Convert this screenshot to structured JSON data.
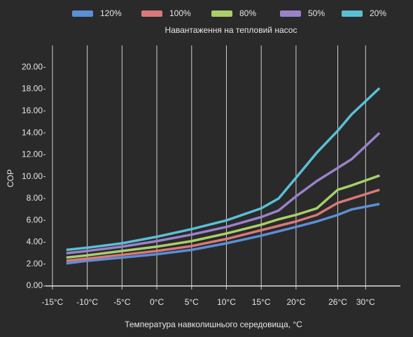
{
  "chart_data": {
    "type": "line",
    "subtitle": "Навантаження на тепловий насос",
    "xlabel": "Температура навколишнього середовища, °C",
    "ylabel": "COP",
    "x": [
      -13,
      -10,
      -5,
      0,
      5,
      10,
      15,
      17.5,
      20,
      23,
      26,
      28,
      32
    ],
    "series": [
      {
        "name": "120%",
        "color": "#5b8fd6",
        "values": [
          2.06,
          2.3,
          2.6,
          2.9,
          3.3,
          3.9,
          4.6,
          5.0,
          5.4,
          5.9,
          6.5,
          7.0,
          7.5
        ]
      },
      {
        "name": "100%",
        "color": "#d9787a",
        "values": [
          2.3,
          2.5,
          2.85,
          3.2,
          3.65,
          4.3,
          5.1,
          5.5,
          5.9,
          6.5,
          7.6,
          8.0,
          8.8
        ]
      },
      {
        "name": "80%",
        "color": "#a9cf6a",
        "values": [
          2.6,
          2.8,
          3.2,
          3.6,
          4.1,
          4.8,
          5.6,
          6.1,
          6.5,
          7.1,
          8.8,
          9.2,
          10.1
        ]
      },
      {
        "name": "50%",
        "color": "#9a82c9",
        "values": [
          3.0,
          3.2,
          3.6,
          4.1,
          4.7,
          5.4,
          6.3,
          6.9,
          8.2,
          9.6,
          10.8,
          11.6,
          14.0
        ]
      },
      {
        "name": "20%",
        "color": "#5bbfd6",
        "values": [
          3.3,
          3.5,
          3.9,
          4.5,
          5.2,
          6.0,
          7.1,
          8.0,
          9.9,
          12.2,
          14.2,
          15.7,
          18.1
        ]
      }
    ],
    "xlim": [
      -16,
      35
    ],
    "xticks": [
      {
        "value": -15,
        "label": "-15°C"
      },
      {
        "value": -10,
        "label": "-10°C"
      },
      {
        "value": -5,
        "label": "-5°C"
      },
      {
        "value": 0,
        "label": "0°C"
      },
      {
        "value": 5,
        "label": "5°C"
      },
      {
        "value": 10,
        "label": "10°C"
      },
      {
        "value": 15,
        "label": "15°C"
      },
      {
        "value": 20,
        "label": "20°C"
      },
      {
        "value": 26,
        "label": "26°C"
      },
      {
        "value": 30,
        "label": "30°C"
      }
    ],
    "ylim": [
      0,
      22
    ],
    "yticks": [
      {
        "value": 0,
        "label": "0.00"
      },
      {
        "value": 2,
        "label": "2.00"
      },
      {
        "value": 4,
        "label": "4.00"
      },
      {
        "value": 6,
        "label": "6.00"
      },
      {
        "value": 8,
        "label": "8.00"
      },
      {
        "value": 10,
        "label": "10.00"
      },
      {
        "value": 12,
        "label": "12.00"
      },
      {
        "value": 14,
        "label": "14.00"
      },
      {
        "value": 16,
        "label": "16.00"
      },
      {
        "value": 18,
        "label": "18.00"
      },
      {
        "value": 20,
        "label": "20.00"
      }
    ],
    "grid": true
  }
}
